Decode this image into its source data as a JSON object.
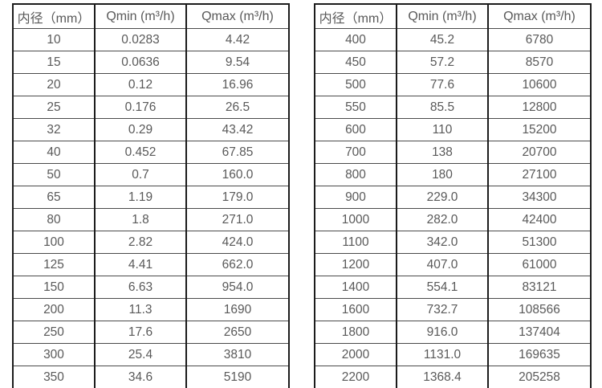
{
  "colors": {
    "background": "#ffffff",
    "border_vertical": "#1c1c1c",
    "border_horizontal": "#4a4a4a",
    "text": "#595959"
  },
  "tables": [
    {
      "name": "flow-spec-table-small-diameters",
      "headers": [
        "内径（mm）",
        "Qmin (m³/h)",
        "Qmax (m³/h)"
      ],
      "rows": [
        [
          "10",
          "0.0283",
          "4.42"
        ],
        [
          "15",
          "0.0636",
          "9.54"
        ],
        [
          "20",
          "0.12",
          "16.96"
        ],
        [
          "25",
          "0.176",
          "26.5"
        ],
        [
          "32",
          "0.29",
          "43.42"
        ],
        [
          "40",
          "0.452",
          "67.85"
        ],
        [
          "50",
          "0.7",
          "160.0"
        ],
        [
          "65",
          "1.19",
          "179.0"
        ],
        [
          "80",
          "1.8",
          "271.0"
        ],
        [
          "100",
          "2.82",
          "424.0"
        ],
        [
          "125",
          "4.41",
          "662.0"
        ],
        [
          "150",
          "6.63",
          "954.0"
        ],
        [
          "200",
          "11.3",
          "1690"
        ],
        [
          "250",
          "17.6",
          "2650"
        ],
        [
          "300",
          "25.4",
          "3810"
        ],
        [
          "350",
          "34.6",
          "5190"
        ]
      ]
    },
    {
      "name": "flow-spec-table-large-diameters",
      "headers": [
        "内径（mm）",
        "Qmin (m³/h)",
        "Qmax (m³/h)"
      ],
      "rows": [
        [
          "400",
          "45.2",
          "6780"
        ],
        [
          "450",
          "57.2",
          "8570"
        ],
        [
          "500",
          "77.6",
          "10600"
        ],
        [
          "550",
          "85.5",
          "12800"
        ],
        [
          "600",
          "110",
          "15200"
        ],
        [
          "700",
          "138",
          "20700"
        ],
        [
          "800",
          "180",
          "27100"
        ],
        [
          "900",
          "229.0",
          "34300"
        ],
        [
          "1000",
          "282.0",
          "42400"
        ],
        [
          "1100",
          "342.0",
          "51300"
        ],
        [
          "1200",
          "407.0",
          "61000"
        ],
        [
          "1400",
          "554.1",
          "83121"
        ],
        [
          "1600",
          "732.7",
          "108566"
        ],
        [
          "1800",
          "916.0",
          "137404"
        ],
        [
          "2000",
          "1131.0",
          "169635"
        ],
        [
          "2200",
          "1368.4",
          "205258"
        ]
      ]
    }
  ]
}
